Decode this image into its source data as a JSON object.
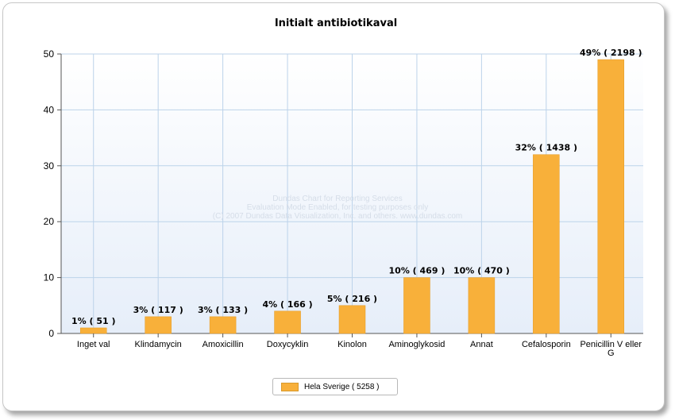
{
  "chart_data": {
    "type": "bar",
    "title": "Initialt antibiotikaval",
    "categories": [
      "Inget val",
      "Klindamycin",
      "Amoxicillin",
      "Doxycyklin",
      "Kinolon",
      "Aminoglykosid",
      "Annat",
      "Cefalosporin",
      "Penicillin V eller G"
    ],
    "series": [
      {
        "name": "Hela Sverige  ( 5258 )",
        "values": [
          1,
          3,
          3,
          4,
          5,
          10,
          10,
          32,
          49
        ],
        "labels": [
          "1% ( 51 )",
          "3% ( 117 )",
          "3% ( 133 )",
          "4% ( 166 )",
          "5% ( 216 )",
          "10% ( 469 )",
          "10% ( 470 )",
          "32% ( 1438 )",
          "49% ( 2198 )"
        ]
      }
    ],
    "ylim": [
      0,
      50
    ],
    "yticks": [
      0,
      10,
      20,
      30,
      40,
      50
    ],
    "grid": true,
    "legend_position": "bottom-center",
    "bar_color": "#F8B03A"
  },
  "watermark": {
    "line1": "Dundas Chart for Reporting Services",
    "line2": "Evaluation Mode Enabled, for testing purposes only",
    "line3": "(C) 2007 Dundas Data Visualization, Inc. and others. www.dundas.com"
  }
}
